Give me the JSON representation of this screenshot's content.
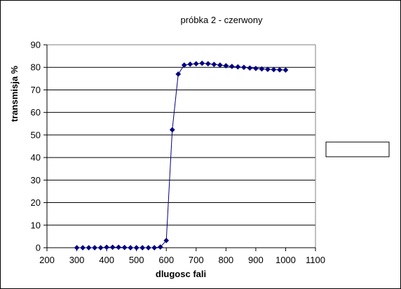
{
  "chart_data": {
    "type": "line",
    "title": "próbka 2 - czerwony",
    "xlabel": "dlugosc fali",
    "ylabel": "transmisja %",
    "xlim": [
      200,
      1100
    ],
    "ylim": [
      0,
      90
    ],
    "x_ticks": [
      200,
      300,
      400,
      500,
      600,
      700,
      800,
      900,
      1000,
      1100
    ],
    "y_ticks": [
      0,
      10,
      20,
      30,
      40,
      50,
      60,
      70,
      80,
      90
    ],
    "grid": "horizontal",
    "legend": "right",
    "colors": {
      "line": "#000080",
      "marker": "#000080",
      "grid": "#000000",
      "background": "#ffffff"
    },
    "series": [
      {
        "name": "",
        "marker": "diamond",
        "x": [
          300,
          320,
          340,
          360,
          380,
          400,
          420,
          440,
          460,
          480,
          500,
          520,
          540,
          560,
          580,
          600,
          620,
          640,
          660,
          680,
          700,
          720,
          740,
          760,
          780,
          800,
          820,
          840,
          860,
          880,
          900,
          920,
          940,
          960,
          980,
          1000
        ],
        "y": [
          0,
          0,
          0,
          0,
          0,
          0.2,
          0.2,
          0.2,
          0.1,
          0,
          0,
          0,
          0,
          0,
          0.3,
          3.2,
          52.3,
          77,
          81,
          81.4,
          81.6,
          81.8,
          81.6,
          81.3,
          81,
          80.7,
          80.4,
          80.2,
          80,
          79.7,
          79.5,
          79.3,
          79.1,
          79,
          78.9,
          78.8
        ]
      }
    ]
  }
}
